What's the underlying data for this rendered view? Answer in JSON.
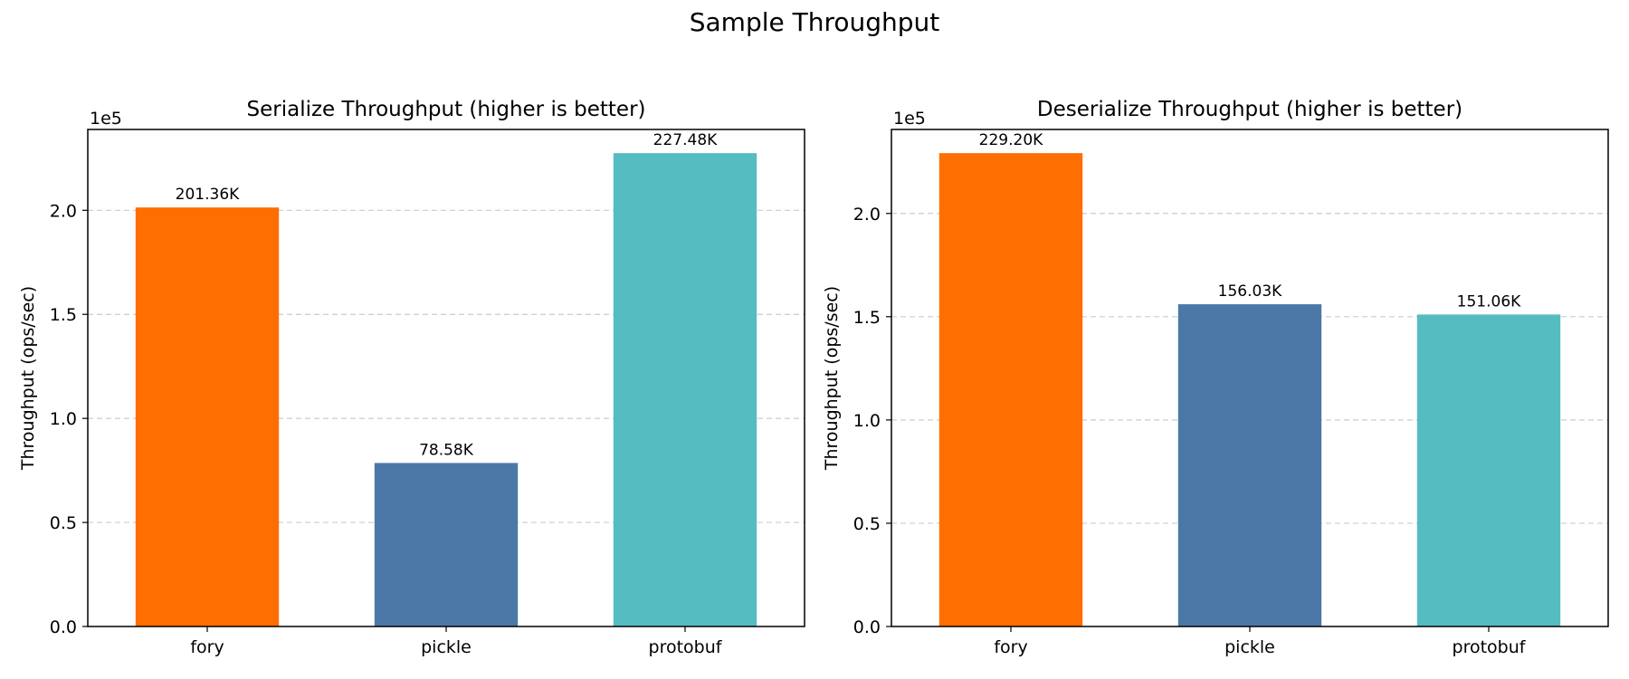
{
  "figure": {
    "title": "Sample Throughput"
  },
  "chart_data": [
    {
      "type": "bar",
      "title": "Serialize Throughput (higher is better)",
      "xlabel": "",
      "ylabel": "Throughput (ops/sec)",
      "scale_label": "1e5",
      "categories": [
        "fory",
        "pickle",
        "protobuf"
      ],
      "values": [
        201360,
        78580,
        227480
      ],
      "data_labels": [
        "201.36K",
        "78.58K",
        "227.48K"
      ],
      "colors": [
        "#ff6e00",
        "#4c78a8",
        "#55bcc1"
      ],
      "ylim": [
        0,
        238854
      ],
      "yticks": [
        0,
        50000,
        100000,
        150000,
        200000
      ],
      "ytick_labels": [
        "0.0",
        "0.5",
        "1.0",
        "1.5",
        "2.0"
      ],
      "grid": "y-dashed"
    },
    {
      "type": "bar",
      "title": "Deserialize Throughput (higher is better)",
      "xlabel": "",
      "ylabel": "Throughput (ops/sec)",
      "scale_label": "1e5",
      "categories": [
        "fory",
        "pickle",
        "protobuf"
      ],
      "values": [
        229200,
        156030,
        151060
      ],
      "data_labels": [
        "229.20K",
        "156.03K",
        "151.06K"
      ],
      "colors": [
        "#ff6e00",
        "#4c78a8",
        "#55bcc1"
      ],
      "ylim": [
        0,
        240660
      ],
      "yticks": [
        0,
        50000,
        100000,
        150000,
        200000
      ],
      "ytick_labels": [
        "0.0",
        "0.5",
        "1.0",
        "1.5",
        "2.0"
      ],
      "grid": "y-dashed"
    }
  ]
}
